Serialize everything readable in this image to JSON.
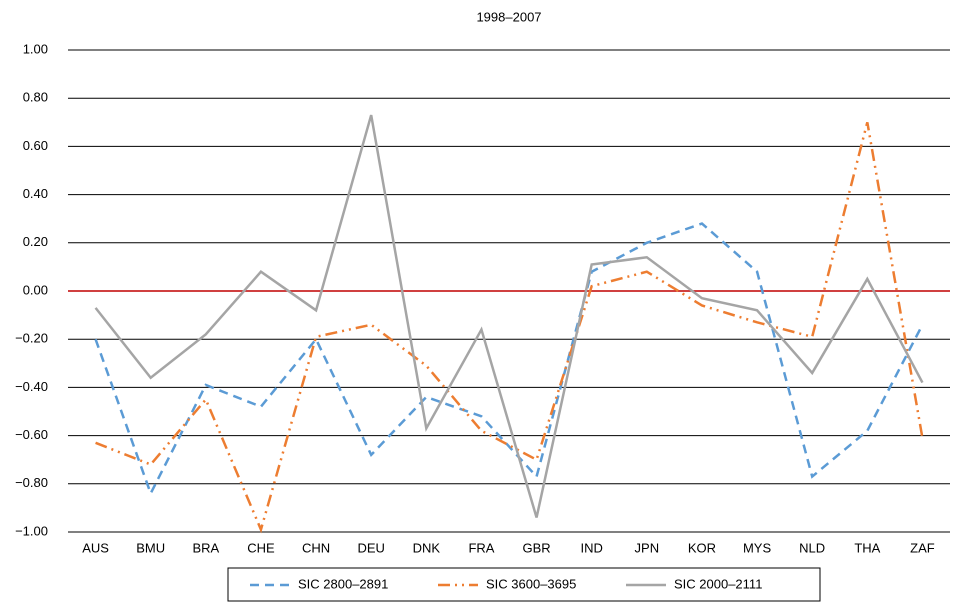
{
  "chart_data": {
    "type": "line",
    "title": "1998–2007",
    "categories": [
      "AUS",
      "BMU",
      "BRA",
      "CHE",
      "CHN",
      "DEU",
      "DNK",
      "FRA",
      "GBR",
      "IND",
      "JPN",
      "KOR",
      "MYS",
      "NLD",
      "THA",
      "ZAF"
    ],
    "series": [
      {
        "name": "SIC 2800–2891",
        "color": "#5b9bd5",
        "dash": "dashed",
        "values": [
          -0.2,
          -0.84,
          -0.39,
          -0.48,
          -0.2,
          -0.68,
          -0.44,
          -0.52,
          -0.77,
          0.08,
          0.2,
          0.28,
          0.08,
          -0.77,
          -0.58,
          -0.14
        ]
      },
      {
        "name": "SIC 3600–3695",
        "color": "#ed7d31",
        "dash": "dashdot",
        "values": [
          -0.63,
          -0.72,
          -0.45,
          -0.99,
          -0.19,
          -0.14,
          -0.31,
          -0.58,
          -0.7,
          0.02,
          0.08,
          -0.06,
          -0.13,
          -0.19,
          0.7,
          -0.61
        ]
      },
      {
        "name": "SIC 2000–2111",
        "color": "#a5a5a5",
        "dash": "solid",
        "values": [
          -0.07,
          -0.36,
          -0.18,
          0.08,
          -0.08,
          0.73,
          -0.57,
          -0.16,
          -0.94,
          0.11,
          0.14,
          -0.03,
          -0.08,
          -0.34,
          0.05,
          -0.38
        ]
      }
    ],
    "ylim": [
      -1,
      1
    ],
    "yticks": [
      {
        "value": -1,
        "label": "−1.00"
      },
      {
        "value": -0.8,
        "label": "−0.80"
      },
      {
        "value": -0.6,
        "label": "−0.60"
      },
      {
        "value": -0.4,
        "label": "−0.40"
      },
      {
        "value": -0.2,
        "label": "−0.20"
      },
      {
        "value": 0,
        "label": "0.00"
      },
      {
        "value": 0.2,
        "label": "0.20"
      },
      {
        "value": 0.4,
        "label": "0.40"
      },
      {
        "value": 0.6,
        "label": "0.60"
      },
      {
        "value": 0.8,
        "label": "0.80"
      },
      {
        "value": 1,
        "label": "1.00"
      }
    ],
    "grid": true,
    "grid_color": "#000000",
    "zero_line_color": "#c00000",
    "legend": "bottom"
  }
}
